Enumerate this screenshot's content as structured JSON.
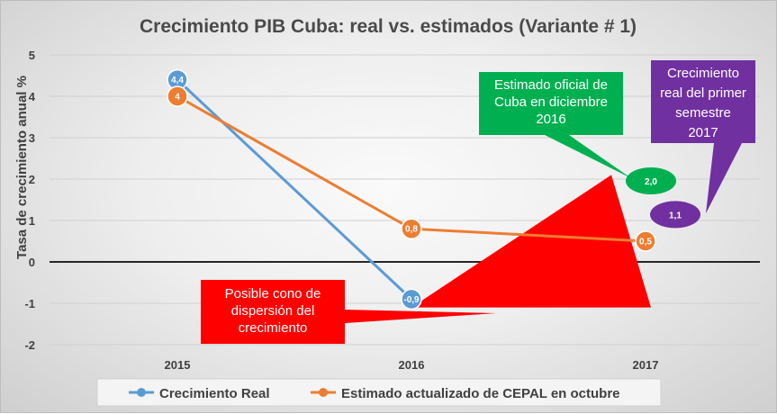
{
  "chart_data": {
    "type": "line",
    "title": "Crecimiento PIB Cuba: real vs. estimados (Variante # 1)",
    "ylabel": "Tasa de crecimiento anual %",
    "xlabel": "",
    "categories": [
      "2015",
      "2016",
      "2017"
    ],
    "ylim": [
      -2,
      5
    ],
    "yticks": [
      5,
      4,
      3,
      2,
      1,
      0,
      -1,
      -2
    ],
    "grid": true,
    "legend_position": "bottom",
    "series": [
      {
        "name": "Crecimiento Real",
        "color": "#5b9bd5",
        "values": [
          4.4,
          -0.9,
          null
        ],
        "labels": [
          "4,4",
          "-0,9",
          ""
        ]
      },
      {
        "name": "Estimado actualizado de CEPAL en octubre",
        "color": "#ed7d31",
        "values": [
          4,
          0.8,
          0.5
        ],
        "labels": [
          "4",
          "0,8",
          "0,5"
        ]
      }
    ],
    "annotations": [
      {
        "id": "official",
        "text_lines": [
          "Estimado oficial de",
          "Cuba en diciembre",
          "2016"
        ],
        "value_label": "2,0",
        "value": 2.0,
        "color": "#00b050"
      },
      {
        "id": "semester",
        "text_lines": [
          "Crecimiento",
          "real del primer",
          "semestre",
          "2017"
        ],
        "value_label": "1,1",
        "value": 1.1,
        "color": "#7030a0"
      },
      {
        "id": "cone",
        "text_lines": [
          "Posible cono de",
          "dispersión del",
          "crecimiento"
        ],
        "color": "#ff0000"
      }
    ]
  }
}
